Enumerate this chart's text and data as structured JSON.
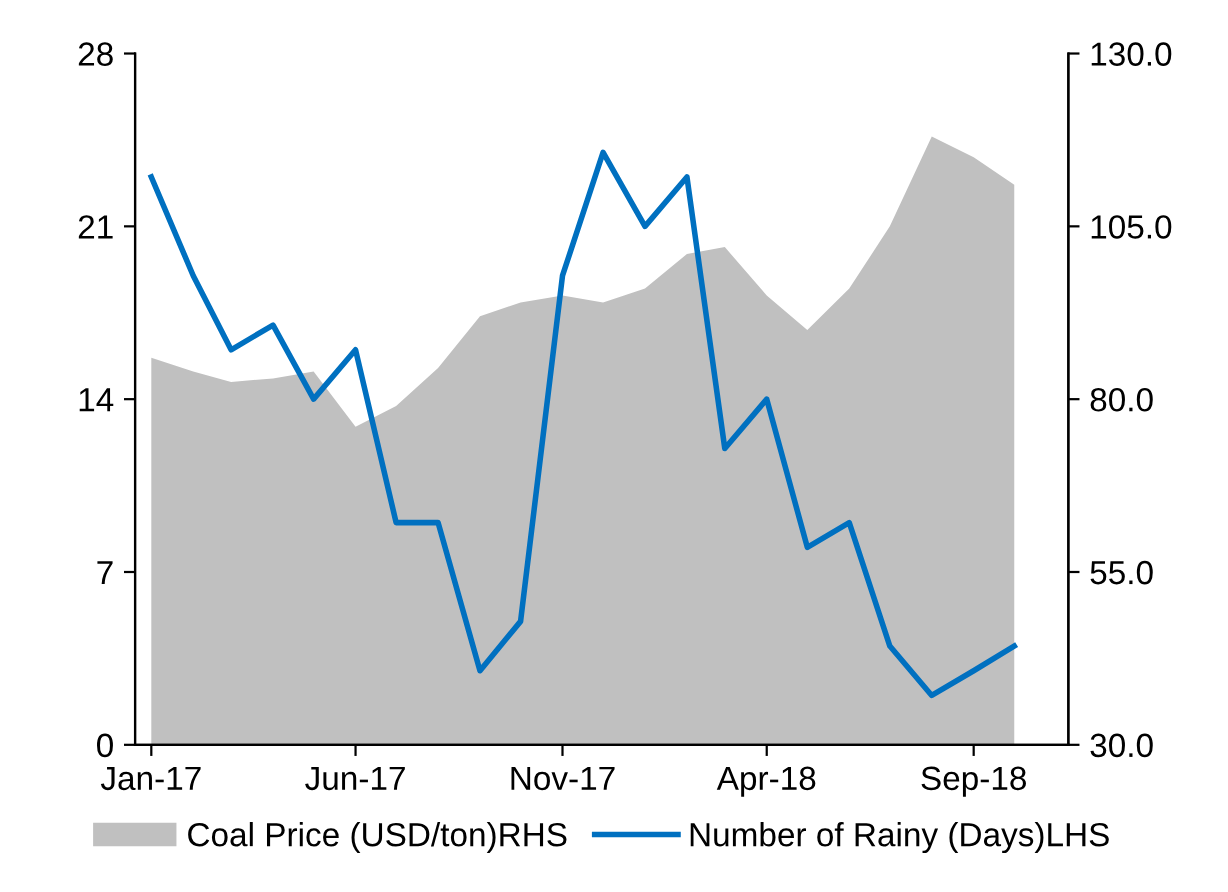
{
  "chart_data": {
    "type": "line",
    "x": [
      "2017-01",
      "2017-02",
      "2017-03",
      "2017-04",
      "2017-05",
      "2017-06",
      "2017-07",
      "2017-08",
      "2017-09",
      "2017-10",
      "2017-11",
      "2017-12",
      "2018-01",
      "2018-02",
      "2018-03",
      "2018-04",
      "2018-05",
      "2018-06",
      "2018-07",
      "2018-08",
      "2018-09",
      "2018-10"
    ],
    "series": [
      {
        "name": "Coal Price (USD/ton)RHS",
        "type": "area",
        "axis": "y2",
        "color": "#c0c0c0",
        "values": [
          86,
          84,
          82.5,
          83,
          84,
          76,
          79,
          84.5,
          92,
          94,
          95,
          94,
          96,
          101,
          102,
          95,
          90,
          96,
          105,
          118,
          115,
          111
        ]
      },
      {
        "name": "Number of Rainy (Days)LHS",
        "axis": "y",
        "color": "#0070c0",
        "values": [
          23,
          19,
          16,
          17,
          14,
          16,
          9,
          9,
          3,
          5,
          19,
          24,
          21,
          23,
          12,
          14,
          8,
          9,
          4,
          2,
          3,
          4
        ]
      }
    ],
    "xlim": [
      "2016-12-20",
      "2018-11-10"
    ],
    "xticks": [
      {
        "value": "2017-01",
        "label": "Jan-17"
      },
      {
        "value": "2017-06",
        "label": "Jun-17"
      },
      {
        "value": "2017-11",
        "label": "Nov-17"
      },
      {
        "value": "2018-04",
        "label": "Apr-18"
      },
      {
        "value": "2018-09",
        "label": "Sep-18"
      }
    ],
    "ylim": [
      0,
      28
    ],
    "yticks": [
      0,
      7,
      14,
      21,
      28
    ],
    "y2lim": [
      30,
      130
    ],
    "y2ticks": [
      {
        "value": 30,
        "label": "30.0"
      },
      {
        "value": 55,
        "label": "55.0"
      },
      {
        "value": 80,
        "label": "80.0"
      },
      {
        "value": 105,
        "label": "105.0"
      },
      {
        "value": 130,
        "label": "130.0"
      }
    ],
    "legend": "bottom",
    "grid": false
  }
}
